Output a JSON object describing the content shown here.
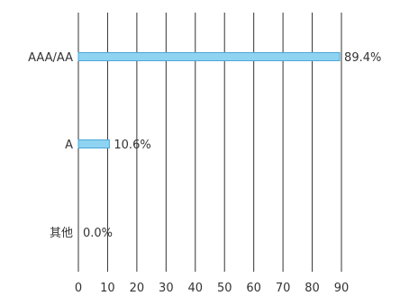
{
  "chart_data": {
    "type": "bar",
    "orientation": "horizontal",
    "categories": [
      "AAA/AA",
      "A",
      "其他"
    ],
    "values": [
      89.4,
      10.6,
      0.0
    ],
    "data_labels": [
      "89.4%",
      "10.6%",
      "0.0%"
    ],
    "x_ticks": [
      "0",
      "10",
      "20",
      "30",
      "40",
      "50",
      "60",
      "70",
      "80",
      "90"
    ],
    "xlim": [
      0,
      90
    ],
    "grid": "vertical",
    "legend": "none",
    "title": "",
    "xlabel": "",
    "ylabel": "",
    "colors": {
      "bar_fill": "#8fd3f2",
      "bar_stroke": "#4aa8d8",
      "grid": "#333333",
      "text": "#333333"
    }
  }
}
